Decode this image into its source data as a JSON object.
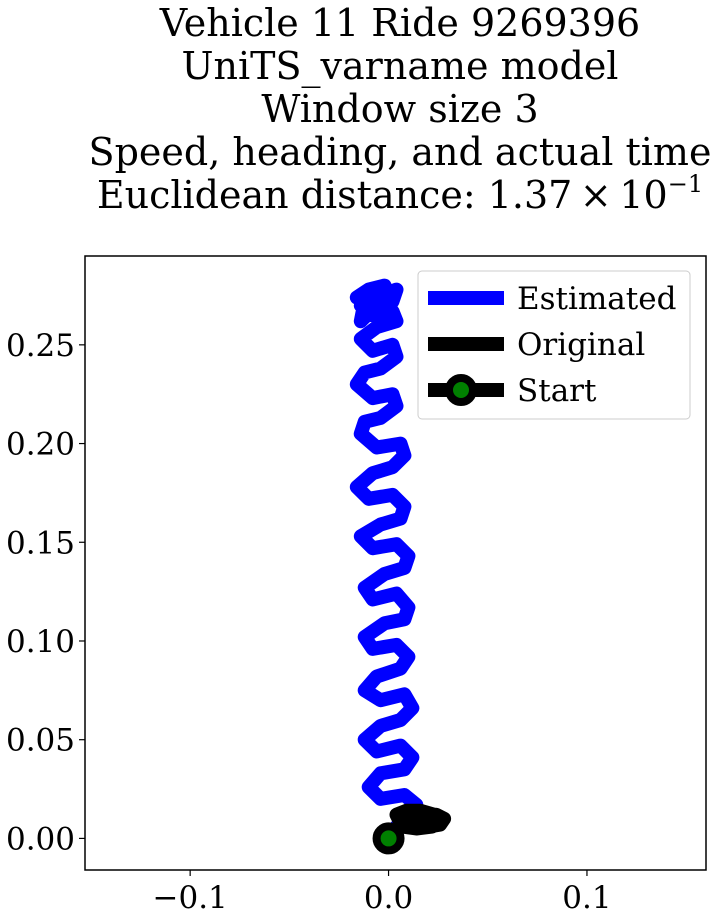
{
  "title": {
    "line1": "Vehicle 11 Ride 9269396",
    "line2": "UniTS_varname model",
    "line3": "Window size 3",
    "line4": "Speed, heading, and actual time",
    "line5_prefix": "Euclidean distance: 1.37 × 10",
    "line5_exponent": "−1"
  },
  "colors": {
    "estimated": "#0000ff",
    "original": "#000000",
    "start_fill": "#008000",
    "start_edge": "#000000"
  },
  "chart_data": {
    "type": "line",
    "title": "Vehicle 11 Ride 9269396 / UniTS_varname model / Window size 3 / Speed, heading, and actual time / Euclidean distance: 1.37 × 10^-1",
    "xlabel": "",
    "ylabel": "",
    "xlim": [
      -0.153,
      0.16
    ],
    "ylim": [
      -0.016,
      0.295
    ],
    "x_ticks": [
      -0.1,
      0.0,
      0.1
    ],
    "x_tick_labels": [
      "−0.1",
      "0.0",
      "0.1"
    ],
    "y_ticks": [
      0.0,
      0.05,
      0.1,
      0.15,
      0.2,
      0.25
    ],
    "y_tick_labels": [
      "0.00",
      "0.05",
      "0.10",
      "0.15",
      "0.20",
      "0.25"
    ],
    "grid": false,
    "legend_position": "upper right",
    "legend": [
      "Estimated",
      "Original",
      "Start"
    ],
    "series": [
      {
        "name": "Estimated",
        "x": [
          0.0,
          0.004,
          0.01,
          0.014,
          0.008,
          -0.004,
          -0.01,
          -0.004,
          0.008,
          0.012,
          0.006,
          -0.006,
          -0.012,
          -0.004,
          0.006,
          0.012,
          0.008,
          -0.004,
          -0.012,
          -0.006,
          0.006,
          0.01,
          0.004,
          -0.008,
          -0.012,
          -0.002,
          0.008,
          0.01,
          0.004,
          -0.008,
          -0.012,
          -0.002,
          0.008,
          0.01,
          0.004,
          -0.008,
          -0.014,
          -0.004,
          0.006,
          0.008,
          0.002,
          -0.01,
          -0.016,
          -0.008,
          0.002,
          0.008,
          0.006,
          -0.006,
          -0.014,
          -0.012,
          -0.004,
          0.004,
          0.002,
          -0.008,
          -0.016,
          -0.012,
          -0.004,
          0.004,
          0.002,
          -0.008,
          -0.014,
          -0.006,
          0.004,
          0.002,
          -0.008,
          -0.014,
          -0.004,
          0.004,
          0.002,
          -0.006,
          -0.012,
          -0.014,
          -0.008,
          0.0,
          -0.002,
          -0.01,
          -0.016
        ],
        "y": [
          0.0,
          0.006,
          0.01,
          0.017,
          0.022,
          0.02,
          0.026,
          0.033,
          0.035,
          0.041,
          0.047,
          0.044,
          0.05,
          0.057,
          0.06,
          0.066,
          0.073,
          0.07,
          0.075,
          0.082,
          0.086,
          0.092,
          0.098,
          0.096,
          0.102,
          0.109,
          0.111,
          0.117,
          0.124,
          0.121,
          0.127,
          0.134,
          0.137,
          0.143,
          0.149,
          0.147,
          0.153,
          0.159,
          0.162,
          0.168,
          0.174,
          0.172,
          0.178,
          0.185,
          0.188,
          0.194,
          0.2,
          0.198,
          0.205,
          0.211,
          0.213,
          0.219,
          0.225,
          0.223,
          0.23,
          0.236,
          0.238,
          0.244,
          0.25,
          0.247,
          0.253,
          0.259,
          0.262,
          0.267,
          0.265,
          0.27,
          0.275,
          0.278,
          0.272,
          0.275,
          0.272,
          0.262,
          0.268,
          0.275,
          0.28,
          0.278,
          0.274
        ]
      },
      {
        "name": "Original",
        "x": [
          0.0,
          0.004,
          0.009,
          0.014,
          0.019,
          0.024,
          0.028,
          0.026,
          0.02,
          0.012,
          0.006,
          0.004,
          0.009,
          0.016,
          0.023,
          0.026,
          0.022,
          0.014,
          0.007,
          0.005,
          0.01,
          0.018,
          0.024,
          0.02,
          0.012,
          0.008
        ],
        "y": [
          0.0,
          0.004,
          0.008,
          0.011,
          0.012,
          0.012,
          0.01,
          0.007,
          0.006,
          0.006,
          0.008,
          0.012,
          0.014,
          0.014,
          0.012,
          0.009,
          0.006,
          0.005,
          0.006,
          0.01,
          0.013,
          0.013,
          0.01,
          0.007,
          0.006,
          0.008
        ]
      },
      {
        "name": "Start",
        "x": [
          0.0
        ],
        "y": [
          0.0
        ]
      }
    ]
  }
}
